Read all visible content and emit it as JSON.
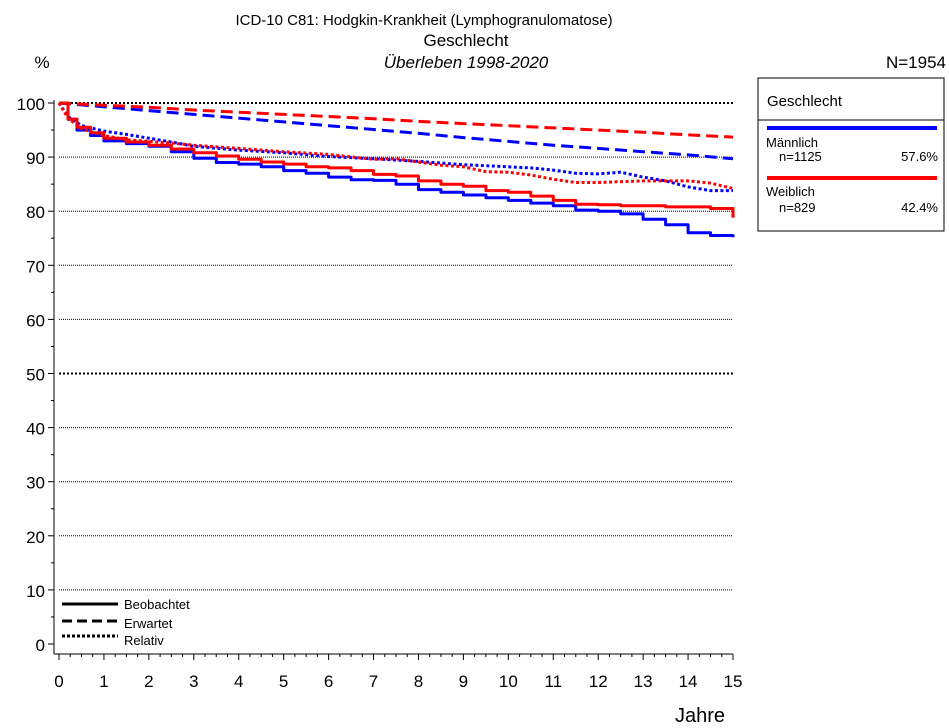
{
  "chart_data": {
    "type": "line",
    "title": "ICD-10 C81: Hodgkin-Krankheit (Lymphogranulomatose)",
    "subtitle": "Geschlecht",
    "subtitle2": "Überleben 1998-2020",
    "ylabel": "%",
    "xlabel": "Jahre",
    "n_total": "N=1954",
    "xlim": [
      0,
      15
    ],
    "ylim": [
      0,
      100
    ],
    "x_ticks": [
      "0",
      "1",
      "2",
      "3",
      "4",
      "5",
      "6",
      "7",
      "8",
      "9",
      "10",
      "11",
      "12",
      "13",
      "14",
      "15"
    ],
    "y_ticks": [
      "0",
      "10",
      "20",
      "30",
      "40",
      "50",
      "60",
      "70",
      "80",
      "90",
      "100"
    ],
    "grid": "horizontal dotted",
    "legend_title": "Geschlecht",
    "line_style_legend": [
      "Beobachtet",
      "Erwartet",
      "Relativ"
    ],
    "groups": [
      {
        "name": "Männlich",
        "n": "n=1125",
        "pct": "57.6%",
        "color": "#0000ff",
        "observed": [
          [
            0,
            100
          ],
          [
            0.2,
            97
          ],
          [
            0.4,
            95
          ],
          [
            0.7,
            94
          ],
          [
            1,
            93
          ],
          [
            1.5,
            92.5
          ],
          [
            2,
            92
          ],
          [
            2.5,
            91
          ],
          [
            3,
            89.8
          ],
          [
            3.5,
            89
          ],
          [
            4,
            88.7
          ],
          [
            4.5,
            88.2
          ],
          [
            5,
            87.5
          ],
          [
            5.5,
            87
          ],
          [
            6,
            86.3
          ],
          [
            6.5,
            85.8
          ],
          [
            7,
            85.7
          ],
          [
            7.5,
            85
          ],
          [
            8,
            84
          ],
          [
            8.5,
            83.5
          ],
          [
            9,
            83
          ],
          [
            9.5,
            82.5
          ],
          [
            10,
            82
          ],
          [
            10.5,
            81.5
          ],
          [
            11,
            81
          ],
          [
            11.5,
            80.2
          ],
          [
            12,
            80
          ],
          [
            12.5,
            79.5
          ],
          [
            13,
            78.5
          ],
          [
            13.5,
            77.5
          ],
          [
            14,
            76
          ],
          [
            14.5,
            75.5
          ],
          [
            15,
            75.2
          ]
        ],
        "expected": [
          [
            0,
            100
          ],
          [
            1,
            99.3
          ],
          [
            2,
            98.6
          ],
          [
            3,
            97.9
          ],
          [
            4,
            97.2
          ],
          [
            5,
            96.5
          ],
          [
            6,
            95.8
          ],
          [
            7,
            95.1
          ],
          [
            8,
            94.4
          ],
          [
            9,
            93.6
          ],
          [
            10,
            92.9
          ],
          [
            11,
            92.2
          ],
          [
            12,
            91.6
          ],
          [
            13,
            91
          ],
          [
            14,
            90.4
          ],
          [
            15,
            89.7
          ]
        ],
        "relative": [
          [
            0,
            100
          ],
          [
            0.2,
            97.5
          ],
          [
            0.5,
            95.8
          ],
          [
            1,
            94.8
          ],
          [
            1.5,
            94.2
          ],
          [
            2,
            93.5
          ],
          [
            2.5,
            92.8
          ],
          [
            3,
            92
          ],
          [
            4,
            91.3
          ],
          [
            5,
            90.8
          ],
          [
            6,
            90.1
          ],
          [
            7,
            89.7
          ],
          [
            8,
            89.2
          ],
          [
            9,
            88.6
          ],
          [
            10,
            88.2
          ],
          [
            10.5,
            88
          ],
          [
            11,
            87.6
          ],
          [
            11.5,
            87
          ],
          [
            12,
            86.9
          ],
          [
            12.5,
            87.2
          ],
          [
            13,
            86.3
          ],
          [
            13.5,
            85.6
          ],
          [
            14,
            84.5
          ],
          [
            14.5,
            83.8
          ],
          [
            15,
            83.8
          ]
        ]
      },
      {
        "name": "Weiblich",
        "n": "n=829",
        "pct": "42.4%",
        "color": "#ff0000",
        "observed": [
          [
            0,
            100
          ],
          [
            0.2,
            97
          ],
          [
            0.4,
            95.5
          ],
          [
            0.7,
            94.5
          ],
          [
            1,
            93.5
          ],
          [
            1.5,
            92.8
          ],
          [
            2,
            92.2
          ],
          [
            2.5,
            91.5
          ],
          [
            3,
            90.8
          ],
          [
            3.5,
            90.2
          ],
          [
            4,
            89.6
          ],
          [
            4.5,
            89.1
          ],
          [
            5,
            88.7
          ],
          [
            5.5,
            88.2
          ],
          [
            6,
            88
          ],
          [
            6.5,
            87.5
          ],
          [
            7,
            86.8
          ],
          [
            7.5,
            86.5
          ],
          [
            8,
            85.6
          ],
          [
            8.5,
            85
          ],
          [
            9,
            84.6
          ],
          [
            9.5,
            83.8
          ],
          [
            10,
            83.5
          ],
          [
            10.5,
            82.8
          ],
          [
            11,
            82
          ],
          [
            11.5,
            81.3
          ],
          [
            12,
            81.2
          ],
          [
            12.5,
            81
          ],
          [
            13,
            81
          ],
          [
            13.5,
            80.8
          ],
          [
            14,
            80.8
          ],
          [
            14.5,
            80.5
          ],
          [
            15,
            78.8
          ]
        ],
        "expected": [
          [
            0,
            100
          ],
          [
            1,
            99.6
          ],
          [
            2,
            99.2
          ],
          [
            3,
            98.7
          ],
          [
            4,
            98.3
          ],
          [
            5,
            97.9
          ],
          [
            6,
            97.5
          ],
          [
            7,
            97.1
          ],
          [
            8,
            96.6
          ],
          [
            9,
            96.2
          ],
          [
            10,
            95.8
          ],
          [
            11,
            95.4
          ],
          [
            12,
            95
          ],
          [
            13,
            94.6
          ],
          [
            14,
            94.1
          ],
          [
            15,
            93.7
          ]
        ],
        "relative": [
          [
            0,
            100
          ],
          [
            0.2,
            97.2
          ],
          [
            0.5,
            95.2
          ],
          [
            1,
            94
          ],
          [
            1.5,
            93.2
          ],
          [
            2,
            92.9
          ],
          [
            2.5,
            92.6
          ],
          [
            3,
            92.2
          ],
          [
            4,
            91.6
          ],
          [
            5,
            91
          ],
          [
            6,
            90.5
          ],
          [
            7,
            89.6
          ],
          [
            7.5,
            89.7
          ],
          [
            8,
            89.1
          ],
          [
            8.5,
            88.5
          ],
          [
            9,
            88.2
          ],
          [
            9.5,
            87.3
          ],
          [
            10,
            87.2
          ],
          [
            10.5,
            86.7
          ],
          [
            11,
            85.9
          ],
          [
            11.5,
            85.3
          ],
          [
            12,
            85.3
          ],
          [
            13,
            85.6
          ],
          [
            13.5,
            85.6
          ],
          [
            14,
            85.6
          ],
          [
            14.5,
            85.2
          ],
          [
            15,
            84.2
          ]
        ]
      }
    ]
  }
}
